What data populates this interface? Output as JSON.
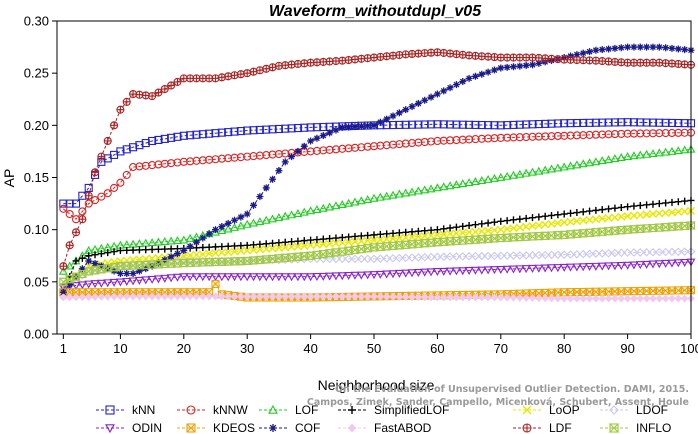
{
  "chart_data": {
    "type": "line",
    "title": "Waveform_withoutdupl_v05",
    "xlabel": "Neighborhood size",
    "ylabel": "AP",
    "xlim": [
      0,
      100
    ],
    "ylim": [
      0,
      0.3
    ],
    "xticks": [
      1,
      10,
      20,
      30,
      40,
      50,
      60,
      70,
      80,
      90,
      100
    ],
    "yticks": [
      0.0,
      0.05,
      0.1,
      0.15,
      0.2,
      0.25,
      0.3
    ],
    "ytick_labels": [
      "0.00",
      "0.05",
      "0.10",
      "0.15",
      "0.20",
      "0.25",
      "0.30"
    ],
    "grid": false,
    "legend_position": "bottom",
    "watermark": [
      "Campos, Zimek, Sander, Campello, Micenková, Schubert, Assent, Houle",
      "On the Evaluation of Unsupervised Outlier Detection. DAMI, 2015."
    ],
    "series": [
      {
        "name": "kNN",
        "color": "#2222cc",
        "marker": "square",
        "points": [
          [
            1,
            0.125
          ],
          [
            3,
            0.125
          ],
          [
            5,
            0.14
          ],
          [
            7,
            0.165
          ],
          [
            10,
            0.175
          ],
          [
            15,
            0.185
          ],
          [
            20,
            0.19
          ],
          [
            30,
            0.195
          ],
          [
            40,
            0.198
          ],
          [
            50,
            0.2
          ],
          [
            60,
            0.201
          ],
          [
            70,
            0.2
          ],
          [
            80,
            0.202
          ],
          [
            90,
            0.203
          ],
          [
            100,
            0.202
          ]
        ]
      },
      {
        "name": "kNNW",
        "color": "#dd2222",
        "marker": "circle",
        "points": [
          [
            1,
            0.12
          ],
          [
            3,
            0.11
          ],
          [
            5,
            0.125
          ],
          [
            8,
            0.135
          ],
          [
            10,
            0.145
          ],
          [
            12,
            0.16
          ],
          [
            20,
            0.165
          ],
          [
            30,
            0.17
          ],
          [
            40,
            0.175
          ],
          [
            50,
            0.18
          ],
          [
            60,
            0.185
          ],
          [
            70,
            0.188
          ],
          [
            80,
            0.19
          ],
          [
            90,
            0.192
          ],
          [
            100,
            0.193
          ]
        ]
      },
      {
        "name": "LOF",
        "color": "#22cc22",
        "marker": "triangle-up",
        "points": [
          [
            1,
            0.06
          ],
          [
            5,
            0.08
          ],
          [
            10,
            0.085
          ],
          [
            20,
            0.09
          ],
          [
            30,
            0.105
          ],
          [
            40,
            0.118
          ],
          [
            50,
            0.13
          ],
          [
            60,
            0.14
          ],
          [
            70,
            0.15
          ],
          [
            80,
            0.16
          ],
          [
            90,
            0.17
          ],
          [
            100,
            0.177
          ]
        ]
      },
      {
        "name": "SimplifiedLOF",
        "color": "#000000",
        "marker": "plus",
        "points": [
          [
            1,
            0.04
          ],
          [
            3,
            0.07
          ],
          [
            5,
            0.075
          ],
          [
            10,
            0.08
          ],
          [
            20,
            0.082
          ],
          [
            30,
            0.085
          ],
          [
            40,
            0.09
          ],
          [
            50,
            0.095
          ],
          [
            60,
            0.1
          ],
          [
            70,
            0.108
          ],
          [
            80,
            0.115
          ],
          [
            90,
            0.122
          ],
          [
            100,
            0.128
          ]
        ]
      },
      {
        "name": "LoOP",
        "color": "#e8e800",
        "marker": "cross",
        "points": [
          [
            1,
            0.045
          ],
          [
            5,
            0.065
          ],
          [
            10,
            0.07
          ],
          [
            20,
            0.075
          ],
          [
            30,
            0.08
          ],
          [
            40,
            0.085
          ],
          [
            50,
            0.09
          ],
          [
            60,
            0.095
          ],
          [
            70,
            0.1
          ],
          [
            80,
            0.107
          ],
          [
            90,
            0.113
          ],
          [
            100,
            0.118
          ]
        ]
      },
      {
        "name": "LDOF",
        "color": "#c8c8ee",
        "marker": "diamond",
        "points": [
          [
            1,
            0.045
          ],
          [
            5,
            0.06
          ],
          [
            10,
            0.065
          ],
          [
            20,
            0.07
          ],
          [
            30,
            0.07
          ],
          [
            40,
            0.072
          ],
          [
            50,
            0.072
          ],
          [
            60,
            0.074
          ],
          [
            70,
            0.075
          ],
          [
            80,
            0.076
          ],
          [
            90,
            0.078
          ],
          [
            100,
            0.079
          ]
        ]
      },
      {
        "name": "ODIN",
        "color": "#8822cc",
        "marker": "triangle-down",
        "points": [
          [
            1,
            0.045
          ],
          [
            5,
            0.048
          ],
          [
            10,
            0.05
          ],
          [
            20,
            0.055
          ],
          [
            30,
            0.055
          ],
          [
            40,
            0.055
          ],
          [
            50,
            0.057
          ],
          [
            60,
            0.06
          ],
          [
            70,
            0.062
          ],
          [
            80,
            0.064
          ],
          [
            90,
            0.066
          ],
          [
            100,
            0.069
          ]
        ]
      },
      {
        "name": "KDEOS",
        "color": "#f0a000",
        "marker": "square-x",
        "points": [
          [
            1,
            0.04
          ],
          [
            5,
            0.04
          ],
          [
            10,
            0.04
          ],
          [
            20,
            0.04
          ],
          [
            24,
            0.04
          ],
          [
            25,
            0.048
          ],
          [
            26,
            0.038
          ],
          [
            30,
            0.035
          ],
          [
            40,
            0.035
          ],
          [
            50,
            0.036
          ],
          [
            60,
            0.037
          ],
          [
            70,
            0.038
          ],
          [
            80,
            0.04
          ],
          [
            90,
            0.041
          ],
          [
            100,
            0.042
          ]
        ]
      },
      {
        "name": "COF",
        "color": "#1a1a88",
        "marker": "asterisk",
        "points": [
          [
            1,
            0.04
          ],
          [
            5,
            0.07
          ],
          [
            10,
            0.058
          ],
          [
            12,
            0.058
          ],
          [
            15,
            0.065
          ],
          [
            20,
            0.08
          ],
          [
            25,
            0.1
          ],
          [
            30,
            0.115
          ],
          [
            33,
            0.14
          ],
          [
            36,
            0.165
          ],
          [
            40,
            0.185
          ],
          [
            45,
            0.198
          ],
          [
            50,
            0.2
          ],
          [
            55,
            0.215
          ],
          [
            60,
            0.23
          ],
          [
            65,
            0.245
          ],
          [
            70,
            0.255
          ],
          [
            75,
            0.258
          ],
          [
            80,
            0.265
          ],
          [
            85,
            0.272
          ],
          [
            90,
            0.275
          ],
          [
            95,
            0.275
          ],
          [
            100,
            0.272
          ]
        ]
      },
      {
        "name": "FastABOD",
        "color": "#f0c8f0",
        "marker": "diamond-filled",
        "points": [
          [
            1,
            0.035
          ],
          [
            10,
            0.036
          ],
          [
            20,
            0.036
          ],
          [
            30,
            0.036
          ],
          [
            40,
            0.036
          ],
          [
            50,
            0.036
          ],
          [
            60,
            0.035
          ],
          [
            70,
            0.035
          ],
          [
            80,
            0.034
          ],
          [
            90,
            0.034
          ],
          [
            100,
            0.034
          ]
        ]
      },
      {
        "name": "LDF",
        "color": "#aa2222",
        "marker": "circle-plus",
        "points": [
          [
            1,
            0.065
          ],
          [
            2,
            0.085
          ],
          [
            4,
            0.11
          ],
          [
            6,
            0.155
          ],
          [
            8,
            0.185
          ],
          [
            10,
            0.215
          ],
          [
            12,
            0.23
          ],
          [
            15,
            0.228
          ],
          [
            20,
            0.245
          ],
          [
            25,
            0.245
          ],
          [
            30,
            0.25
          ],
          [
            35,
            0.257
          ],
          [
            40,
            0.26
          ],
          [
            45,
            0.262
          ],
          [
            50,
            0.265
          ],
          [
            55,
            0.268
          ],
          [
            60,
            0.27
          ],
          [
            65,
            0.267
          ],
          [
            70,
            0.265
          ],
          [
            75,
            0.265
          ],
          [
            80,
            0.263
          ],
          [
            85,
            0.262
          ],
          [
            90,
            0.26
          ],
          [
            95,
            0.26
          ],
          [
            100,
            0.258
          ]
        ]
      },
      {
        "name": "INFLO",
        "color": "#a0c840",
        "marker": "hourglass-square",
        "points": [
          [
            1,
            0.05
          ],
          [
            5,
            0.06
          ],
          [
            10,
            0.065
          ],
          [
            20,
            0.068
          ],
          [
            30,
            0.07
          ],
          [
            40,
            0.075
          ],
          [
            50,
            0.083
          ],
          [
            60,
            0.088
          ],
          [
            70,
            0.092
          ],
          [
            80,
            0.095
          ],
          [
            90,
            0.1
          ],
          [
            100,
            0.104
          ]
        ]
      }
    ]
  }
}
